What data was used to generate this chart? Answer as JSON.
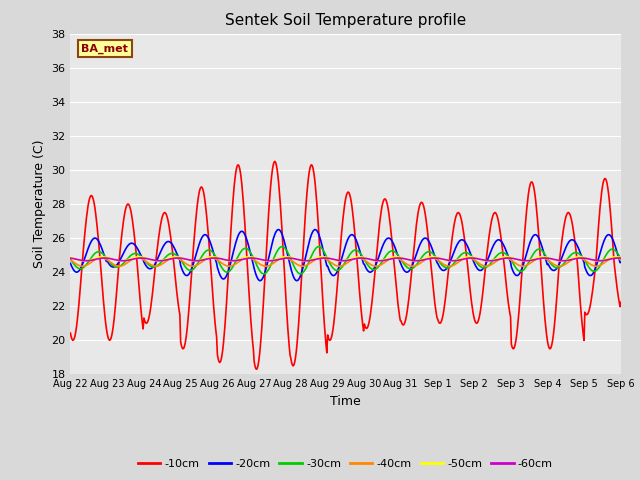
{
  "title": "Sentek Soil Temperature profile",
  "xlabel": "Time",
  "ylabel": "Soil Temperature (C)",
  "ylim": [
    18,
    38
  ],
  "yticks": [
    18,
    20,
    22,
    24,
    26,
    28,
    30,
    32,
    34,
    36,
    38
  ],
  "annotation": "BA_met",
  "background_color": "#d9d9d9",
  "plot_bg_color": "#e8e8e8",
  "legend_entries": [
    "-10cm",
    "-20cm",
    "-30cm",
    "-40cm",
    "-50cm",
    "-60cm"
  ],
  "legend_colors": [
    "#ff0000",
    "#0000ff",
    "#00cc00",
    "#ff8800",
    "#ffff00",
    "#cc00cc"
  ],
  "x_tick_labels": [
    "Aug 22",
    "Aug 23",
    "Aug 24",
    "Aug 25",
    "Aug 26",
    "Aug 27",
    "Aug 28",
    "Aug 29",
    "Aug 30",
    "Aug 31",
    "Sep 1",
    "Sep 2",
    "Sep 3",
    "Sep 4",
    "Sep 5",
    "Sep 6"
  ],
  "num_days": 15,
  "pts_per_day": 48
}
